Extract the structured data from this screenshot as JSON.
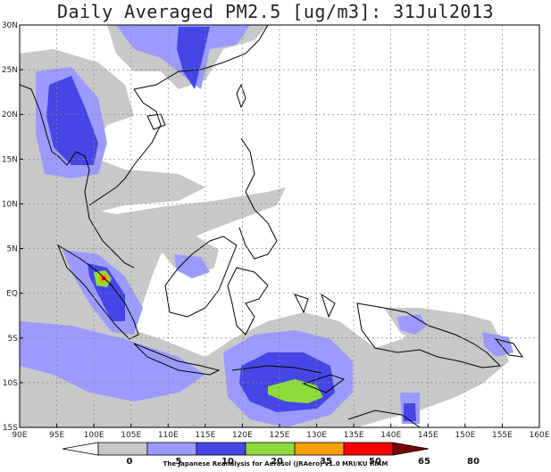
{
  "title": "Daily Averaged PM2.5 [ug/m3]: 31Jul2013",
  "map": {
    "lon_range": [
      90,
      160
    ],
    "lat_range": [
      -15,
      30
    ],
    "lon_ticks": [
      "90E",
      "95E",
      "100E",
      "105E",
      "110E",
      "115E",
      "120E",
      "125E",
      "130E",
      "135E",
      "140E",
      "145E",
      "150E",
      "155E",
      "160E"
    ],
    "lat_ticks": [
      "15S",
      "10S",
      "5S",
      "EQ",
      "5N",
      "10N",
      "15N",
      "20N",
      "25N",
      "30N"
    ],
    "grid": true
  },
  "colorbar": {
    "levels": [
      "0",
      "5",
      "10",
      "20",
      "35",
      "50",
      "65",
      "80"
    ],
    "colors": [
      "#ffffff",
      "#c8c8c8",
      "#9b9bff",
      "#4646e6",
      "#8cdc3c",
      "#f5a000",
      "#ff0000",
      "#7a0000"
    ]
  },
  "credit": "The Japanese Reanalysis for Aerosol (JRAero) v1.0 MRI/KU RIAM"
}
